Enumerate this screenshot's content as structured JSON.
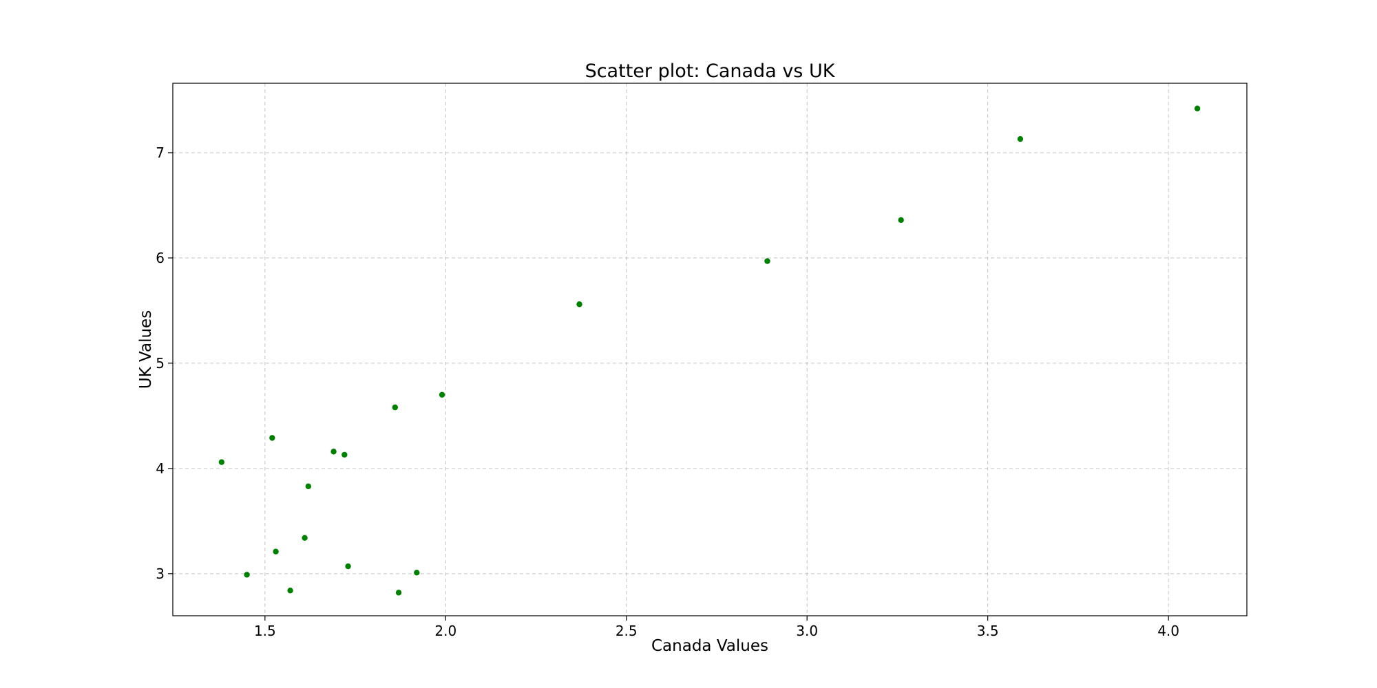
{
  "chart_data": {
    "type": "scatter",
    "title": "Scatter plot: Canada vs UK",
    "xlabel": "Canada Values",
    "ylabel": "UK Values",
    "xlim": [
      1.245,
      4.217
    ],
    "ylim": [
      2.6,
      7.66
    ],
    "xticks": [
      1.5,
      2.0,
      2.5,
      3.0,
      3.5,
      4.0
    ],
    "xtick_labels": [
      "1.5",
      "2.0",
      "2.5",
      "3.0",
      "3.5",
      "4.0"
    ],
    "yticks": [
      3,
      4,
      5,
      6,
      7
    ],
    "ytick_labels": [
      "3",
      "4",
      "5",
      "6",
      "7"
    ],
    "grid": true,
    "marker_color": "#008000",
    "series": [
      {
        "points": [
          {
            "x": 1.38,
            "y": 4.06
          },
          {
            "x": 1.45,
            "y": 2.99
          },
          {
            "x": 1.52,
            "y": 4.29
          },
          {
            "x": 1.53,
            "y": 3.21
          },
          {
            "x": 1.57,
            "y": 2.84
          },
          {
            "x": 1.61,
            "y": 3.34
          },
          {
            "x": 1.62,
            "y": 3.83
          },
          {
            "x": 1.69,
            "y": 4.16
          },
          {
            "x": 1.72,
            "y": 4.13
          },
          {
            "x": 1.73,
            "y": 3.07
          },
          {
            "x": 1.86,
            "y": 4.58
          },
          {
            "x": 1.87,
            "y": 2.82
          },
          {
            "x": 1.92,
            "y": 3.01
          },
          {
            "x": 1.99,
            "y": 4.7
          },
          {
            "x": 2.37,
            "y": 5.56
          },
          {
            "x": 2.89,
            "y": 5.97
          },
          {
            "x": 3.26,
            "y": 6.36
          },
          {
            "x": 3.59,
            "y": 7.13
          },
          {
            "x": 4.08,
            "y": 7.42
          }
        ]
      }
    ]
  }
}
